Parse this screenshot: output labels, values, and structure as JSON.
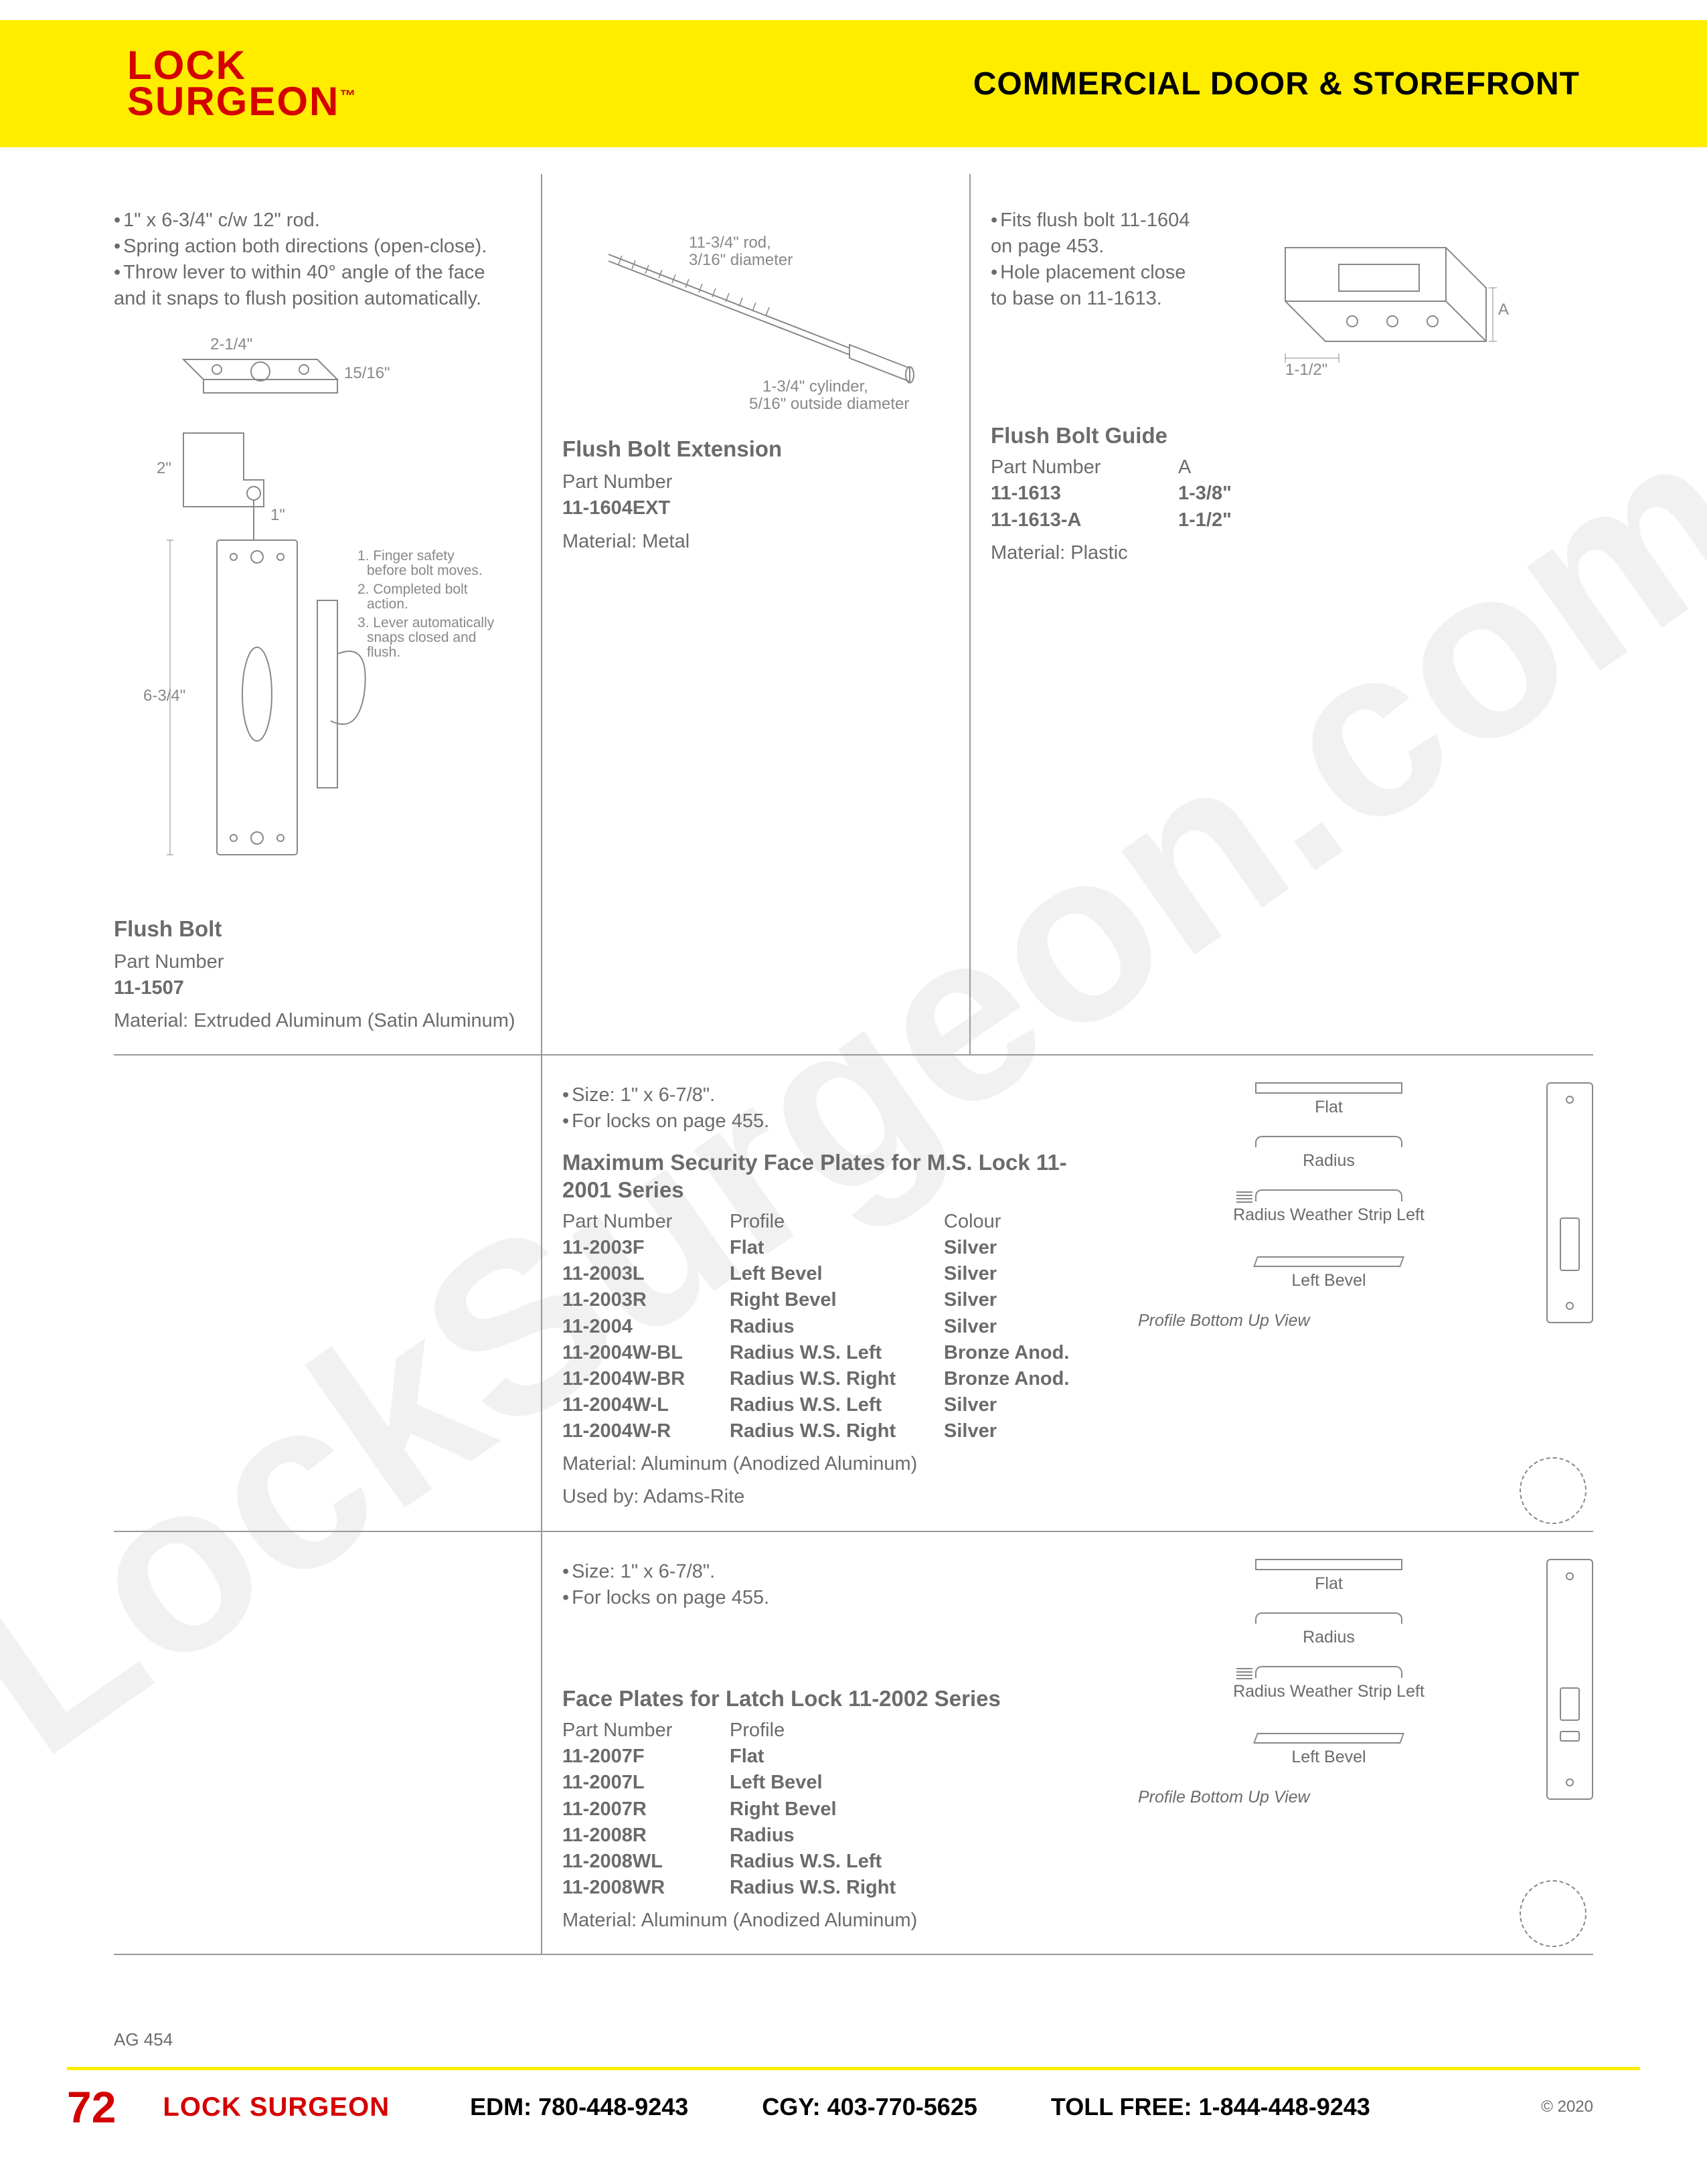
{
  "header": {
    "logo_line1": "LOCK",
    "logo_line2": "SURGEON",
    "logo_tm": "™",
    "title": "COMMERCIAL DOOR & STOREFRONT",
    "bar_color": "#ffed00",
    "logo_color": "#d40000"
  },
  "watermark": "LockSurgeon.com",
  "flush_bolt": {
    "bullets": [
      "1\" x 6-3/4\" c/w 12\" rod.",
      "Spring action both directions (open-close).",
      "Throw lever to within 40° angle of the face and it snaps to flush position automatically."
    ],
    "notes": [
      "1. Finger safety before bolt moves.",
      "2. Completed bolt action.",
      "3. Lever automatically snaps closed and flush."
    ],
    "dims": {
      "w": "2-1/4\"",
      "h": "6-3/4\"",
      "lip": "15/16\"",
      "depth": "2\"",
      "bolt": "1\""
    },
    "title": "Flush Bolt",
    "label_part": "Part Number",
    "part": "11-1507",
    "material_label": "Material:",
    "material": "Extruded Aluminum (Satin Aluminum)"
  },
  "flush_bolt_ext": {
    "rod_label": "11-3/4\" rod, 3/16\" diameter",
    "cyl_label": "1-3/4\" cylinder, 5/16\" outside diameter",
    "title": "Flush Bolt Extension",
    "label_part": "Part Number",
    "part": "11-1604EXT",
    "material_label": "Material:",
    "material": "Metal"
  },
  "flush_bolt_guide": {
    "bullets": [
      "Fits flush bolt 11-1604 on page 453.",
      "Hole placement close to base on 11-1613."
    ],
    "dim_w": "1-1/2\"",
    "dim_a": "A",
    "title": "Flush Bolt Guide",
    "col1": "Part Number",
    "col2": "A",
    "rows": [
      {
        "pn": "11-1613",
        "a": "1-3/8\""
      },
      {
        "pn": "11-1613-A",
        "a": "1-1/2\""
      }
    ],
    "material_label": "Material:",
    "material": "Plastic"
  },
  "faceplates_2001": {
    "bullets": [
      "Size: 1\" x 6-7/8\".",
      "For locks on page 455."
    ],
    "title": "Maximum Security Face Plates for M.S. Lock 11-2001 Series",
    "col1": "Part Number",
    "col2": "Profile",
    "col3": "Colour",
    "rows": [
      {
        "pn": "11-2003F",
        "profile": "Flat",
        "colour": "Silver"
      },
      {
        "pn": "11-2003L",
        "profile": "Left Bevel",
        "colour": "Silver"
      },
      {
        "pn": "11-2003R",
        "profile": "Right Bevel",
        "colour": "Silver"
      },
      {
        "pn": "11-2004",
        "profile": "Radius",
        "colour": "Silver"
      },
      {
        "pn": "11-2004W-BL",
        "profile": "Radius W.S. Left",
        "colour": "Bronze Anod."
      },
      {
        "pn": "11-2004W-BR",
        "profile": "Radius W.S. Right",
        "colour": "Bronze Anod."
      },
      {
        "pn": "11-2004W-L",
        "profile": "Radius W.S. Left",
        "colour": "Silver"
      },
      {
        "pn": "11-2004W-R",
        "profile": "Radius W.S. Right",
        "colour": "Silver"
      }
    ],
    "material_label": "Material:",
    "material": "Aluminum (Anodized Aluminum)",
    "usedby_label": "Used by:",
    "usedby": "Adams-Rite",
    "profiles": {
      "flat": "Flat",
      "radius": "Radius",
      "wstrip": "Radius Weather Strip Left",
      "bevel": "Left Bevel"
    },
    "caption": "Profile Bottom Up View"
  },
  "faceplates_2002": {
    "bullets": [
      "Size: 1\" x 6-7/8\".",
      "For locks on page 455."
    ],
    "title": "Face Plates for Latch Lock 11-2002 Series",
    "col1": "Part Number",
    "col2": "Profile",
    "rows": [
      {
        "pn": "11-2007F",
        "profile": "Flat"
      },
      {
        "pn": "11-2007L",
        "profile": "Left Bevel"
      },
      {
        "pn": "11-2007R",
        "profile": "Right Bevel"
      },
      {
        "pn": "11-2008R",
        "profile": "Radius"
      },
      {
        "pn": "11-2008WL",
        "profile": "Radius W.S. Left"
      },
      {
        "pn": "11-2008WR",
        "profile": "Radius W.S. Right"
      }
    ],
    "material_label": "Material:",
    "material": "Aluminum (Anodized Aluminum)",
    "profiles": {
      "flat": "Flat",
      "radius": "Radius",
      "wstrip": "Radius Weather Strip Left",
      "bevel": "Left Bevel"
    },
    "caption": "Profile Bottom Up View"
  },
  "footer": {
    "ag_code": "AG 454",
    "page_num": "72",
    "brand": "LOCK SURGEON",
    "edm_label": "EDM:",
    "edm": "780-448-9243",
    "cgy_label": "CGY:",
    "cgy": "403-770-5625",
    "tollfree_label": "TOLL FREE:",
    "tollfree": "1-844-448-9243",
    "copyright": "© 2020"
  },
  "colors": {
    "yellow": "#ffed00",
    "red": "#d40000",
    "text": "#6b6b6b",
    "line": "#888888",
    "bg": "#ffffff"
  }
}
